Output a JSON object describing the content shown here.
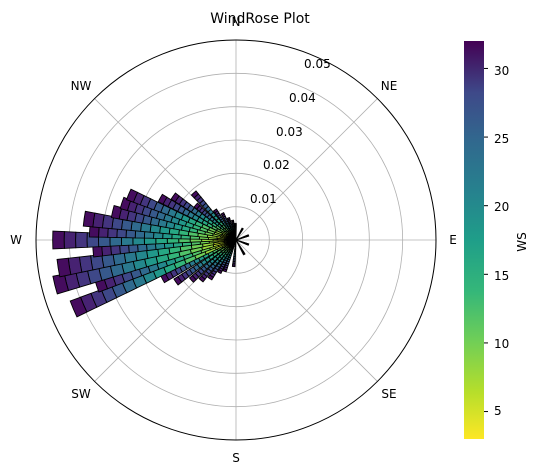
{
  "chart_data": {
    "type": "windrose",
    "title": "WindRose Plot",
    "directions": [
      "N",
      "NE",
      "E",
      "SE",
      "S",
      "SW",
      "W",
      "NW"
    ],
    "radial_ticks": [
      "0.01",
      "0.02",
      "0.03",
      "0.04",
      "0.05"
    ],
    "r_max": 0.06,
    "grid": true,
    "colorbar": {
      "label": "WS",
      "ticks": [
        "5",
        "10",
        "15",
        "20",
        "25",
        "30"
      ],
      "range": [
        3,
        32
      ],
      "colormap": "viridis_r"
    },
    "bins_per_bar": 16,
    "bars": [
      {
        "deg": 200,
        "r": 0.01
      },
      {
        "deg": 207,
        "r": 0.011
      },
      {
        "deg": 214,
        "r": 0.014
      },
      {
        "deg": 221,
        "r": 0.016
      },
      {
        "deg": 228,
        "r": 0.018
      },
      {
        "deg": 235,
        "r": 0.022
      },
      {
        "deg": 242,
        "r": 0.025
      },
      {
        "deg": 247,
        "r": 0.053
      },
      {
        "deg": 252,
        "r": 0.044
      },
      {
        "deg": 256,
        "r": 0.056
      },
      {
        "deg": 261,
        "r": 0.054
      },
      {
        "deg": 266,
        "r": 0.043
      },
      {
        "deg": 270,
        "r": 0.055
      },
      {
        "deg": 274,
        "r": 0.044
      },
      {
        "deg": 278,
        "r": 0.046
      },
      {
        "deg": 283,
        "r": 0.038
      },
      {
        "deg": 288,
        "r": 0.036
      },
      {
        "deg": 293,
        "r": 0.035
      },
      {
        "deg": 299,
        "r": 0.026
      },
      {
        "deg": 305,
        "r": 0.023
      },
      {
        "deg": 311,
        "r": 0.016
      },
      {
        "deg": 318,
        "r": 0.019
      },
      {
        "deg": 325,
        "r": 0.011
      },
      {
        "deg": 333,
        "r": 0.009
      },
      {
        "deg": 341,
        "r": 0.007
      },
      {
        "deg": 350,
        "r": 0.006
      },
      {
        "deg": 358,
        "r": 0.005
      },
      {
        "deg": 30,
        "r": 0.004
      },
      {
        "deg": 70,
        "r": 0.004
      },
      {
        "deg": 110,
        "r": 0.004
      },
      {
        "deg": 150,
        "r": 0.005
      },
      {
        "deg": 185,
        "r": 0.008
      }
    ]
  }
}
